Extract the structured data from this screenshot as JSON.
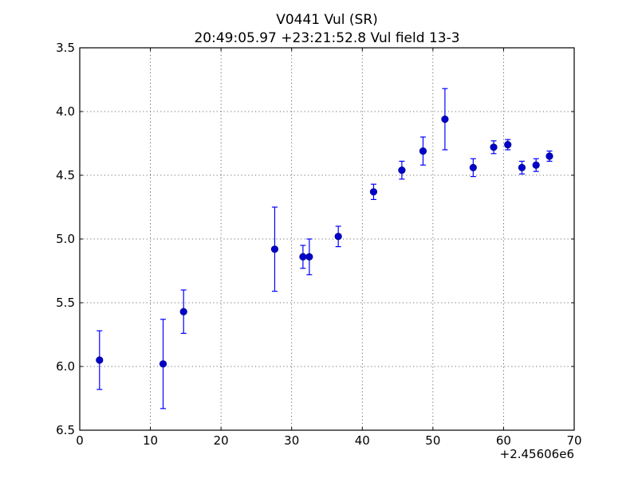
{
  "chart_data": {
    "type": "scatter",
    "title": "V0441 Vul (SR)",
    "subtitle": "20:49:05.97 +23:21:52.8 Vul field 13-3",
    "xlabel": "",
    "ylabel": "",
    "x_offset_label": "+2.45606e6",
    "xlim": [
      0,
      70
    ],
    "ylim": [
      6.5,
      3.5
    ],
    "y_inverted": true,
    "grid": true,
    "x_ticks": [
      "0",
      "10",
      "20",
      "30",
      "40",
      "50",
      "60",
      "70"
    ],
    "y_ticks": [
      "3.5",
      "4.0",
      "4.5",
      "5.0",
      "5.5",
      "6.0",
      "6.5"
    ],
    "marker_color": "#0000cd",
    "errorbar_color": "#0000ff",
    "points": [
      {
        "x": 2.8,
        "y": 5.95,
        "err": 0.23
      },
      {
        "x": 11.8,
        "y": 5.98,
        "err": 0.35
      },
      {
        "x": 14.7,
        "y": 5.57,
        "err": 0.17
      },
      {
        "x": 27.6,
        "y": 5.08,
        "err": 0.33
      },
      {
        "x": 31.6,
        "y": 5.14,
        "err": 0.09
      },
      {
        "x": 32.5,
        "y": 5.14,
        "err": 0.14
      },
      {
        "x": 36.6,
        "y": 4.98,
        "err": 0.08
      },
      {
        "x": 41.6,
        "y": 4.63,
        "err": 0.06
      },
      {
        "x": 45.6,
        "y": 4.46,
        "err": 0.07
      },
      {
        "x": 48.6,
        "y": 4.31,
        "err": 0.11
      },
      {
        "x": 51.7,
        "y": 4.06,
        "err": 0.24
      },
      {
        "x": 55.7,
        "y": 4.44,
        "err": 0.07
      },
      {
        "x": 58.6,
        "y": 4.28,
        "err": 0.05
      },
      {
        "x": 60.6,
        "y": 4.26,
        "err": 0.04
      },
      {
        "x": 62.6,
        "y": 4.44,
        "err": 0.05
      },
      {
        "x": 64.6,
        "y": 4.42,
        "err": 0.05
      },
      {
        "x": 66.5,
        "y": 4.35,
        "err": 0.04
      }
    ]
  }
}
